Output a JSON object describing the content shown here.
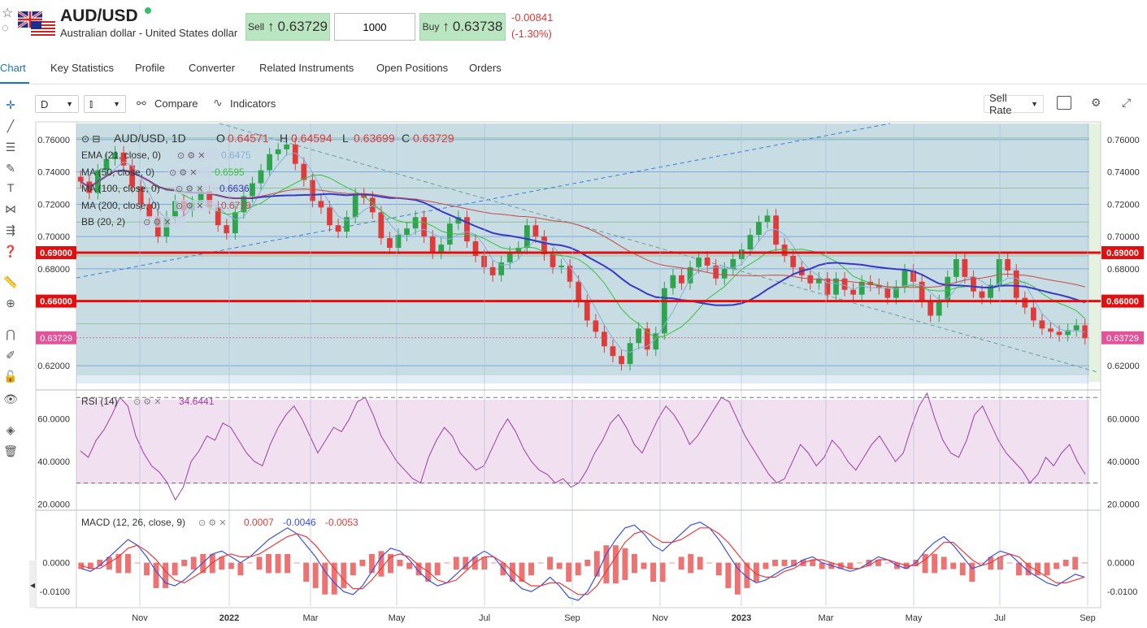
{
  "header": {
    "symbol": "AUD/USD",
    "name": "Australian dollar - United States dollar",
    "sell_label": "Sell",
    "sell_price": "0.63729",
    "quantity": "1000",
    "buy_label": "Buy",
    "buy_price": "0.63738",
    "change_abs": "-0.00841",
    "change_pct": "(-1.30%)"
  },
  "tabs": [
    "Chart",
    "Key Statistics",
    "Profile",
    "Converter",
    "Related Instruments",
    "Open Positions",
    "Orders"
  ],
  "active_tab": "Chart",
  "toolbar": {
    "interval": "D",
    "compare_label": "Compare",
    "indicators_label": "Indicators",
    "rate_type": "Sell Rate"
  },
  "legend": {
    "title": "AUD/USD, 1D",
    "o_label": "O",
    "o_value": "0.64571",
    "h_label": "H",
    "h_value": "0.64594",
    "l_label": "L",
    "l_value": "0.63699",
    "c_label": "C",
    "c_value": "0.63729",
    "indicators": [
      {
        "name": "EMA (21, close, 0)",
        "value": "0.6475",
        "color": "#8aaed8"
      },
      {
        "name": "MA (50, close, 0)",
        "value": "0.6595",
        "color": "#39c03a"
      },
      {
        "name": "MA (100, close, 0)",
        "value": "0.6636",
        "color": "#3838c8"
      },
      {
        "name": "MA (200, close, 0)",
        "value": "0.6719",
        "color": "#c84848"
      },
      {
        "name": "BB (20, 2)",
        "value": "",
        "color": "#3a7bd5"
      }
    ]
  },
  "rsi_legend": {
    "name": "RSI (14)",
    "value": "34.6441"
  },
  "macd_legend": {
    "name": "MACD (12, 26, close, 9)",
    "v1": "0.0007",
    "v2": "-0.0046",
    "v3": "-0.0053"
  },
  "colors": {
    "accent": "#1e73be",
    "up": "#2ea44f",
    "down": "#e03a3a",
    "price_bg": "#c7dde3",
    "rsi_bg": "#f0e0f0",
    "ema": "#8aaed8",
    "ma50": "#39c03a",
    "ma100": "#3838c8",
    "ma200": "#c84848",
    "rsi_line": "#9b3fa0",
    "macd_line": "#3b4fe0",
    "signal_line": "#e83a3a"
  },
  "chart_data": {
    "type": "line",
    "x_tick_labels": [
      "Nov",
      "2022",
      "Mar",
      "May",
      "Jul",
      "Sep",
      "Nov",
      "2023",
      "Mar",
      "May",
      "Jul",
      "Sep"
    ],
    "price_axis": {
      "ylim": [
        0.61,
        0.77
      ],
      "ticks": [
        "0.76000",
        "0.74000",
        "0.72000",
        "0.70000",
        "0.68000",
        "0.62000"
      ],
      "tick_values": [
        0.76,
        0.74,
        0.72,
        0.7,
        0.68,
        0.62
      ],
      "horizontal_levels": [
        {
          "label": "0.69000",
          "value": 0.69
        },
        {
          "label": "0.66000",
          "value": 0.66
        }
      ],
      "last_price_label": "0.63729",
      "last_price": 0.63729
    },
    "price_close": [
      0.734,
      0.727,
      0.741,
      0.748,
      0.752,
      0.744,
      0.731,
      0.72,
      0.712,
      0.7,
      0.712,
      0.722,
      0.716,
      0.721,
      0.728,
      0.718,
      0.707,
      0.702,
      0.715,
      0.725,
      0.733,
      0.741,
      0.751,
      0.754,
      0.757,
      0.745,
      0.735,
      0.722,
      0.718,
      0.707,
      0.703,
      0.712,
      0.726,
      0.724,
      0.715,
      0.699,
      0.693,
      0.701,
      0.705,
      0.712,
      0.7,
      0.69,
      0.695,
      0.708,
      0.712,
      0.697,
      0.688,
      0.681,
      0.676,
      0.684,
      0.69,
      0.693,
      0.707,
      0.7,
      0.689,
      0.681,
      0.682,
      0.672,
      0.66,
      0.648,
      0.641,
      0.632,
      0.626,
      0.621,
      0.634,
      0.643,
      0.63,
      0.64,
      0.668,
      0.676,
      0.671,
      0.681,
      0.687,
      0.682,
      0.674,
      0.68,
      0.686,
      0.692,
      0.701,
      0.709,
      0.713,
      0.695,
      0.688,
      0.681,
      0.676,
      0.671,
      0.674,
      0.664,
      0.674,
      0.667,
      0.664,
      0.672,
      0.67,
      0.668,
      0.662,
      0.669,
      0.679,
      0.672,
      0.66,
      0.651,
      0.66,
      0.675,
      0.686,
      0.675,
      0.666,
      0.662,
      0.67,
      0.686,
      0.679,
      0.662,
      0.656,
      0.648,
      0.643,
      0.641,
      0.639,
      0.642,
      0.645,
      0.637
    ],
    "price_ylim": [
      0.61,
      0.77
    ],
    "rsi": {
      "ylim": [
        18,
        72
      ],
      "ticks": [
        "60.0000",
        "40.0000",
        "20.0000"
      ],
      "tick_values": [
        60,
        40,
        20
      ],
      "levels": [
        70,
        30
      ],
      "values": [
        45,
        42,
        50,
        55,
        62,
        70,
        66,
        52,
        44,
        38,
        35,
        30,
        22,
        28,
        40,
        45,
        52,
        50,
        58,
        56,
        50,
        44,
        40,
        38,
        48,
        56,
        62,
        66,
        60,
        52,
        44,
        50,
        56,
        54,
        60,
        68,
        70,
        62,
        52,
        46,
        40,
        36,
        32,
        30,
        42,
        50,
        56,
        52,
        44,
        40,
        36,
        38,
        46,
        54,
        60,
        54,
        46,
        40,
        36,
        34,
        30,
        32,
        28,
        30,
        36,
        44,
        50,
        58,
        62,
        56,
        48,
        44,
        52,
        60,
        66,
        62,
        56,
        48,
        52,
        58,
        64,
        70,
        68,
        60,
        52,
        46,
        40,
        34,
        30,
        32,
        40,
        48,
        44,
        38,
        42,
        50,
        46,
        40,
        36,
        42,
        48,
        52,
        46,
        40,
        44,
        56,
        66,
        72,
        60,
        50,
        44,
        42,
        50,
        62,
        66,
        58,
        50,
        44,
        40,
        36,
        30,
        34,
        42,
        38,
        44,
        48,
        40,
        34
      ]
    },
    "macd": {
      "ylim": [
        -0.015,
        0.017
      ],
      "ticks": [
        "0.0000",
        "-0.0100"
      ],
      "tick_values": [
        0.0,
        -0.01
      ],
      "macd": [
        -0.002,
        -0.003,
        -0.001,
        0.002,
        0.005,
        0.008,
        0.006,
        0.002,
        -0.003,
        -0.007,
        -0.008,
        -0.006,
        -0.003,
        0.0,
        0.003,
        0.004,
        0.002,
        0.0,
        0.002,
        0.005,
        0.008,
        0.01,
        0.012,
        0.01,
        0.006,
        0.002,
        -0.003,
        -0.007,
        -0.01,
        -0.011,
        -0.008,
        -0.003,
        0.002,
        0.005,
        0.004,
        0.001,
        -0.003,
        -0.006,
        -0.008,
        -0.007,
        -0.004,
        -0.001,
        0.002,
        0.004,
        0.002,
        -0.002,
        -0.006,
        -0.009,
        -0.01,
        -0.008,
        -0.005,
        -0.008,
        -0.012,
        -0.013,
        -0.01,
        -0.004,
        0.003,
        0.008,
        0.012,
        0.013,
        0.01,
        0.006,
        0.004,
        0.007,
        0.01,
        0.013,
        0.014,
        0.012,
        0.008,
        0.003,
        -0.002,
        -0.005,
        -0.007,
        -0.006,
        -0.004,
        -0.002,
        -0.001,
        0.001,
        0.002,
        0.0,
        -0.001,
        -0.002,
        -0.003,
        -0.002,
        0.0,
        0.002,
        0.001,
        -0.001,
        -0.002,
        0.0,
        0.004,
        0.007,
        0.009,
        0.006,
        0.002,
        -0.002,
        -0.001,
        0.002,
        0.004,
        0.003,
        0.0,
        -0.003,
        -0.005,
        -0.007,
        -0.008,
        -0.006,
        -0.004,
        -0.005
      ],
      "signal": [
        -0.001,
        -0.002,
        -0.002,
        0.0,
        0.002,
        0.005,
        0.006,
        0.004,
        0.001,
        -0.003,
        -0.006,
        -0.007,
        -0.005,
        -0.003,
        0.0,
        0.002,
        0.003,
        0.002,
        0.002,
        0.003,
        0.005,
        0.007,
        0.009,
        0.01,
        0.009,
        0.006,
        0.002,
        -0.002,
        -0.006,
        -0.009,
        -0.009,
        -0.006,
        -0.002,
        0.002,
        0.003,
        0.002,
        -0.001,
        -0.003,
        -0.006,
        -0.007,
        -0.006,
        -0.003,
        0.0,
        0.002,
        0.002,
        0.0,
        -0.003,
        -0.006,
        -0.008,
        -0.008,
        -0.007,
        -0.007,
        -0.009,
        -0.011,
        -0.011,
        -0.008,
        -0.003,
        0.002,
        0.007,
        0.01,
        0.011,
        0.009,
        0.007,
        0.007,
        0.008,
        0.01,
        0.012,
        0.012,
        0.01,
        0.007,
        0.003,
        -0.001,
        -0.004,
        -0.005,
        -0.005,
        -0.003,
        -0.002,
        0.0,
        0.001,
        0.001,
        0.0,
        -0.001,
        -0.002,
        -0.002,
        -0.001,
        0.001,
        0.001,
        0.0,
        -0.001,
        -0.001,
        0.001,
        0.004,
        0.007,
        0.007,
        0.004,
        0.001,
        -0.001,
        0.0,
        0.002,
        0.003,
        0.002,
        -0.001,
        -0.003,
        -0.005,
        -0.007,
        -0.007,
        -0.006,
        -0.005
      ]
    }
  }
}
